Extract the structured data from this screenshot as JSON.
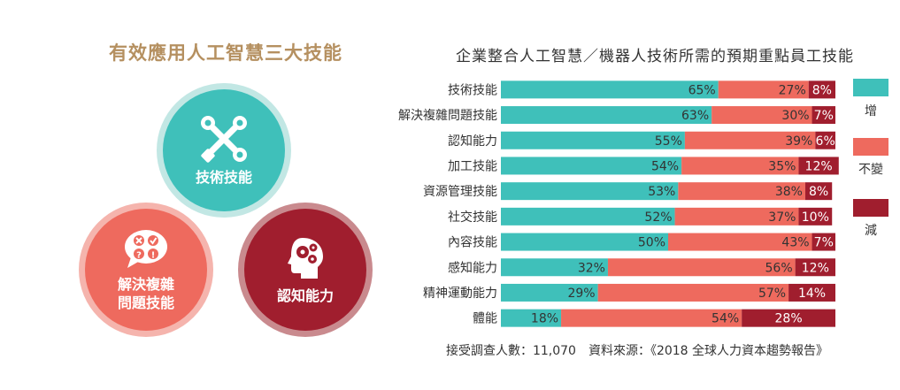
{
  "left_panel": {
    "title": "有效應用人工智慧三大技能",
    "circles": [
      {
        "label": "技術技能",
        "color": "#3fc0ba",
        "icon": "tools-icon"
      },
      {
        "label": "解決複雜\n問題技能",
        "color": "#ee6a5e",
        "icon": "question-bubble-icon"
      },
      {
        "label": "認知能力",
        "color": "#a01e2e",
        "icon": "head-gears-icon"
      }
    ]
  },
  "chart_data": {
    "type": "bar",
    "stacked": true,
    "orientation": "horizontal",
    "title": "企業整合人工智慧／機器人技術所需的預期重點員工技能",
    "categories": [
      "技術技能",
      "解決複雜問題技能",
      "認知能力",
      "加工技能",
      "資源管理技能",
      "社交技能",
      "內容技能",
      "感知能力",
      "精神運動能力",
      "體能"
    ],
    "series": [
      {
        "name": "增",
        "color": "#3fc0ba",
        "values": [
          65,
          63,
          55,
          54,
          53,
          52,
          50,
          32,
          29,
          18
        ]
      },
      {
        "name": "不變",
        "color": "#ee6a5e",
        "values": [
          27,
          30,
          39,
          35,
          38,
          37,
          43,
          56,
          57,
          54
        ]
      },
      {
        "name": "減",
        "color": "#a01e2e",
        "values": [
          8,
          7,
          6,
          12,
          8,
          10,
          7,
          12,
          14,
          28
        ]
      }
    ],
    "value_suffix": "%",
    "xlim": [
      0,
      100
    ],
    "legend_position": "right",
    "grid": false
  },
  "footnote": "接受調查人數：11,070　資料來源：《2018 全球人力資本趨勢報告》"
}
